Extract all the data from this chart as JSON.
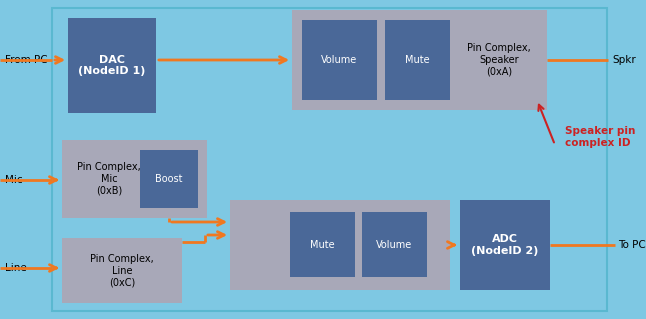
{
  "bg_color": "#7EC8E3",
  "dark_blue": "#4A6898",
  "gray_box": "#A8A8B8",
  "orange": "#F07820",
  "red_color": "#CC2222",
  "figsize": [
    6.46,
    3.19
  ],
  "dpi": 100,
  "labels": {
    "from_pc": "From PC",
    "spkr": "Spkr",
    "mic": "Mic",
    "line": "Line",
    "to_pc": "To PC",
    "dac": "DAC\n(NodeID 1)",
    "adc": "ADC\n(NodeID 2)",
    "volume_top": "Volume",
    "mute_top": "Mute",
    "pin_complex_speaker": "Pin Complex,\nSpeaker\n(0xA)",
    "boost": "Boost",
    "pin_complex_mic": "Pin Complex,\nMic\n(0xB)",
    "mute_bottom": "Mute",
    "volume_bottom": "Volume",
    "pin_complex_line": "Pin Complex,\nLine\n(0xC)",
    "speaker_pin_label": "Speaker pin\ncomplex ID"
  }
}
